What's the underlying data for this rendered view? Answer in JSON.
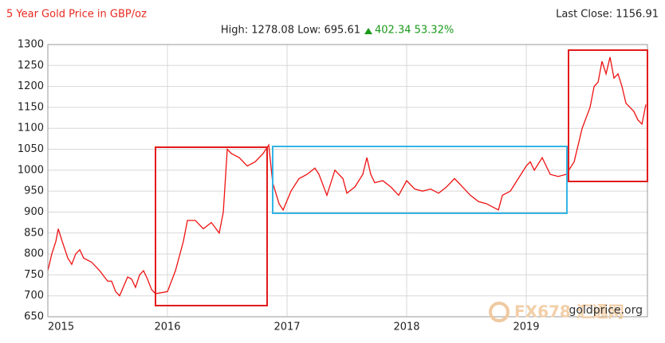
{
  "chart_data": {
    "type": "line",
    "title": "5 Year Gold Price in GBP/oz",
    "last_close": "Last Close: 1156.91",
    "high_low": "High: 1278.08 Low: 695.61",
    "change": "402.34 53.32%",
    "source": "goldprice.org",
    "watermark": "FX678 汇通网",
    "x": [
      2015,
      2015.033,
      2015.067,
      2015.087,
      2015.12,
      2015.167,
      2015.2,
      2015.233,
      2015.267,
      2015.3,
      2015.367,
      2015.433,
      2015.5,
      2015.533,
      2015.567,
      2015.6,
      2015.667,
      2015.7,
      2015.733,
      2015.767,
      2015.8,
      2015.833,
      2015.867,
      2015.9,
      2016.0,
      2016.067,
      2016.133,
      2016.167,
      2016.233,
      2016.3,
      2016.367,
      2016.433,
      2016.467,
      2016.5,
      2016.533,
      2016.6,
      2016.667,
      2016.733,
      2016.8,
      2016.847,
      2016.88,
      2016.933,
      2016.967,
      2017.033,
      2017.1,
      2017.167,
      2017.233,
      2017.267,
      2017.333,
      2017.4,
      2017.467,
      2017.5,
      2017.567,
      2017.633,
      2017.667,
      2017.7,
      2017.733,
      2017.8,
      2017.867,
      2017.933,
      2018.0,
      2018.067,
      2018.133,
      2018.2,
      2018.267,
      2018.333,
      2018.4,
      2018.467,
      2018.533,
      2018.6,
      2018.667,
      2018.733,
      2018.767,
      2018.8,
      2018.867,
      2018.933,
      2019.0,
      2019.033,
      2019.067,
      2019.133,
      2019.2,
      2019.267,
      2019.333,
      2019.4,
      2019.467,
      2019.533,
      2019.567,
      2019.6,
      2019.633,
      2019.667,
      2019.7,
      2019.733,
      2019.767,
      2019.8,
      2019.833,
      2019.867,
      2019.9,
      2019.933,
      2019.967,
      2020.0
    ],
    "series": [
      {
        "name": "Gold Price GBP/oz",
        "color": "#ee1111",
        "values": [
          760,
          800,
          830,
          860,
          830,
          790,
          775,
          800,
          810,
          790,
          780,
          760,
          735,
          735,
          710,
          700,
          745,
          740,
          720,
          750,
          760,
          740,
          715,
          705,
          710,
          760,
          830,
          880,
          880,
          860,
          875,
          850,
          900,
          1050,
          1040,
          1030,
          1010,
          1020,
          1040,
          1060,
          970,
          920,
          905,
          950,
          980,
          990,
          1005,
          990,
          940,
          1000,
          980,
          945,
          960,
          990,
          1030,
          990,
          970,
          975,
          960,
          940,
          975,
          955,
          950,
          955,
          945,
          960,
          980,
          960,
          940,
          925,
          920,
          910,
          905,
          940,
          950,
          980,
          1010,
          1020,
          1000,
          1030,
          990,
          985,
          990,
          1020,
          1100,
          1150,
          1200,
          1210,
          1260,
          1230,
          1270,
          1220,
          1230,
          1200,
          1160,
          1150,
          1140,
          1120,
          1110,
          1156.91
        ]
      }
    ],
    "xlim": [
      2015,
      2020.013
    ],
    "xticks": [
      2015,
      2016,
      2017,
      2018,
      2019
    ],
    "ylim": [
      650,
      1300
    ],
    "yticks": [
      650,
      700,
      750,
      800,
      850,
      900,
      950,
      1000,
      1050,
      1100,
      1150,
      1200,
      1250,
      1300
    ],
    "grid": true
  }
}
